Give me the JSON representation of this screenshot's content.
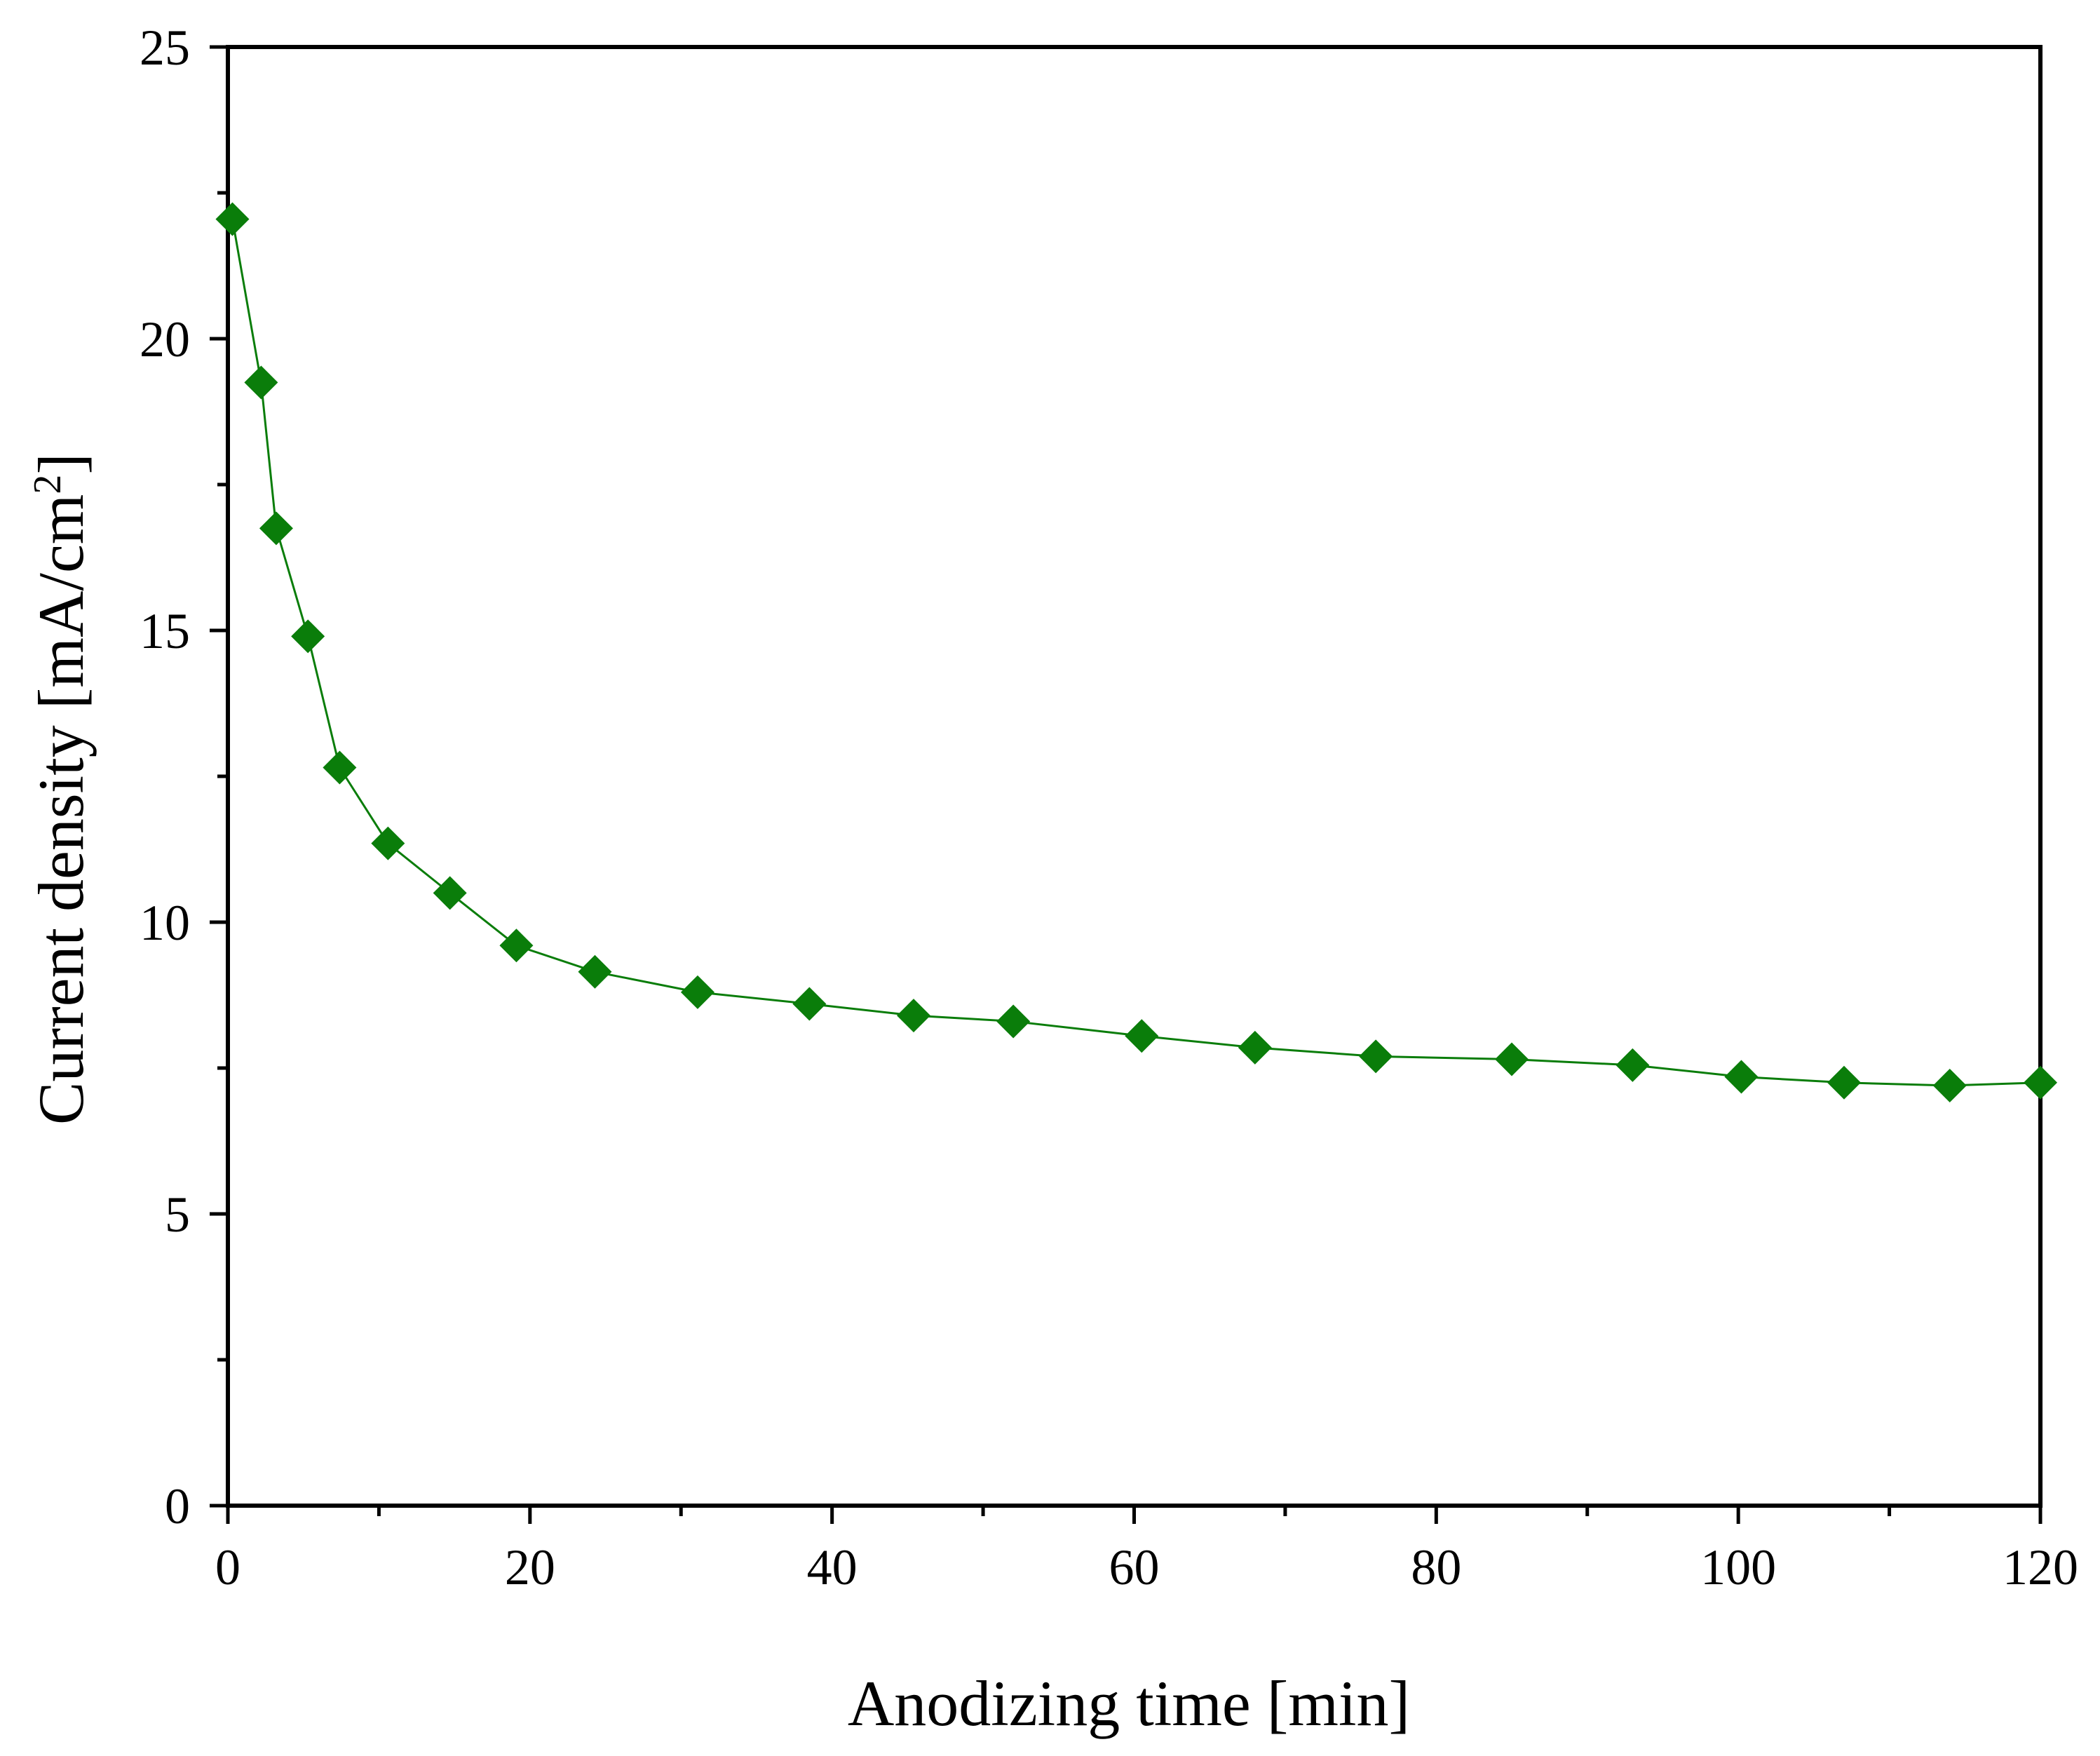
{
  "chart_data": {
    "type": "line",
    "title": "",
    "xlabel": "Anodizing time [min]",
    "ylabel_main": "Current density [mA/cm",
    "ylabel_sup": "2",
    "ylabel_close": "]",
    "xlim": [
      0,
      120
    ],
    "ylim": [
      0,
      25
    ],
    "x_major_ticks": [
      0,
      20,
      40,
      60,
      80,
      100,
      120
    ],
    "x_tick_labels": [
      "0",
      "20",
      "40",
      "60",
      "80",
      "100",
      "120"
    ],
    "x_minor_ticks": [
      10,
      30,
      50,
      70,
      90,
      110
    ],
    "y_major_ticks": [
      0,
      5,
      10,
      15,
      20,
      25
    ],
    "y_tick_labels": [
      "0",
      "5",
      "10",
      "15",
      "20",
      "25"
    ],
    "y_minor_ticks": [
      2.5,
      7.5,
      12.5,
      17.5,
      22.5
    ],
    "grid": false,
    "marker": "diamond",
    "color": "#0a7d0a",
    "series": [
      {
        "name": "Current density",
        "x": [
          0.3,
          2.2,
          3.2,
          5.3,
          7.4,
          10.6,
          14.7,
          19.1,
          24.3,
          31.1,
          38.5,
          45.4,
          52.0,
          60.5,
          68.0,
          76.0,
          85.0,
          93.0,
          100.2,
          107.0,
          114.0,
          120.0
        ],
        "y": [
          22.05,
          19.25,
          16.75,
          14.9,
          12.65,
          11.35,
          10.5,
          9.6,
          9.15,
          8.8,
          8.6,
          8.4,
          8.3,
          8.05,
          7.85,
          7.7,
          7.65,
          7.55,
          7.35,
          7.25,
          7.2,
          7.25
        ]
      }
    ]
  }
}
